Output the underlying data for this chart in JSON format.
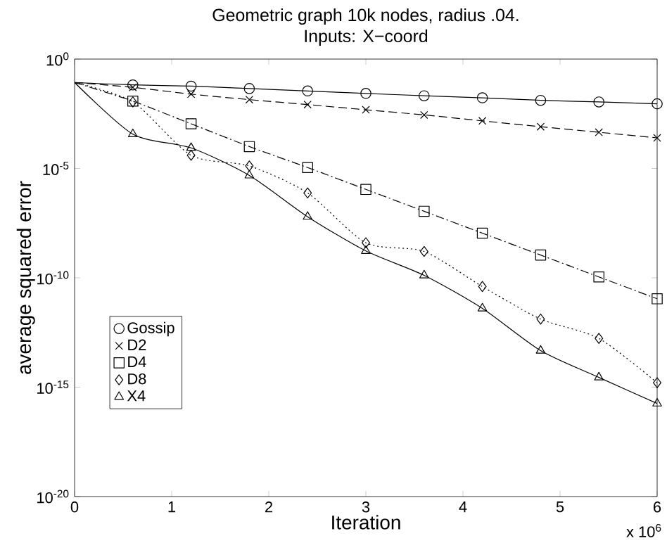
{
  "chart_data": {
    "type": "line",
    "title": "Geometric graph 10k nodes, radius .04.",
    "subtitle": "Inputs: X−coord",
    "xlabel": "Iteration",
    "ylabel": "average squared error",
    "annotations": [
      "x 10$^{6}$"
    ],
    "xlim": [
      0,
      6
    ],
    "xticks": [
      0,
      1,
      2,
      3,
      4,
      5,
      6
    ],
    "ylim": [
      1e-20,
      1
    ],
    "log": "y",
    "yticks": [
      {
        "value": 1e-20,
        "label": "10$^{-20}$"
      },
      {
        "value": 1e-15,
        "label": "10$^{-15}$"
      },
      {
        "value": 1e-10,
        "label": "10$^{-10}$"
      },
      {
        "value": 1e-05,
        "label": "10$^{-5}$"
      },
      {
        "value": 1,
        "label": "10$^{0}$"
      }
    ],
    "grid": false,
    "legend": "left",
    "x": [
      0,
      0.6,
      1.2,
      1.8,
      2.4,
      3.0,
      3.6,
      4.2,
      4.8,
      5.4,
      6.0
    ],
    "series": [
      {
        "name": "Gossip",
        "color": "#000000",
        "marker": "circle",
        "line_style": "solid",
        "values": [
          0.085,
          0.066,
          0.058,
          0.045,
          0.035,
          0.027,
          0.021,
          0.017,
          0.013,
          0.011,
          0.009
        ]
      },
      {
        "name": "D2",
        "color": "#000000",
        "marker": "cross",
        "line_style": "dashed",
        "values": [
          0.085,
          0.051,
          0.025,
          0.014,
          0.0083,
          0.0048,
          0.0028,
          0.0015,
          0.00081,
          0.00045,
          0.00025
        ]
      },
      {
        "name": "D4",
        "color": "#000000",
        "marker": "square",
        "line_style": "dashdot",
        "values": [
          0.085,
          0.012,
          0.0011,
          0.0001,
          1.1e-05,
          1.1e-06,
          1.1e-07,
          1.1e-08,
          1.1e-09,
          1.1e-10,
          1.1e-11
        ]
      },
      {
        "name": "D8",
        "color": "#000000",
        "marker": "diamond",
        "line_style": "dotted",
        "values": [
          0.085,
          0.011,
          4e-05,
          1.3e-05,
          7.6e-07,
          4e-09,
          1.6e-09,
          4e-11,
          1.3e-12,
          1.7e-13,
          1.6e-15
        ]
      },
      {
        "name": "X4",
        "color": "#000000",
        "marker": "triangle",
        "line_style": "solid",
        "values": [
          0.085,
          0.00037,
          8.7e-05,
          4.8e-06,
          6.2e-08,
          1.7e-09,
          1.3e-10,
          4e-12,
          4.7e-14,
          2.8e-15,
          1.8e-16
        ]
      }
    ]
  }
}
